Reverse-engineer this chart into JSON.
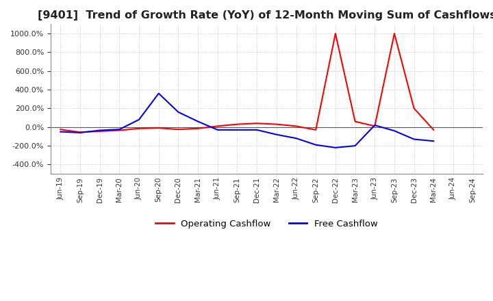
{
  "title": "[9401]  Trend of Growth Rate (YoY) of 12-Month Moving Sum of Cashflows",
  "title_fontsize": 11.5,
  "ylim": [
    -500,
    1100
  ],
  "yticks": [
    -400,
    -200,
    0,
    200,
    400,
    600,
    800,
    1000
  ],
  "background_color": "#ffffff",
  "operating_color": "#ff0000",
  "free_color": "#0000ff",
  "legend_labels": [
    "Operating Cashflow",
    "Free Cashflow"
  ],
  "x_labels": [
    "Jun-19",
    "Sep-19",
    "Dec-19",
    "Mar-20",
    "Jun-20",
    "Sep-20",
    "Dec-20",
    "Mar-21",
    "Jun-21",
    "Sep-21",
    "Dec-21",
    "Mar-22",
    "Jun-22",
    "Sep-22",
    "Dec-22",
    "Mar-23",
    "Jun-23",
    "Sep-23",
    "Dec-23",
    "Mar-24",
    "Jun-24",
    "Sep-24"
  ],
  "operating_cashflow": [
    -25,
    -55,
    -45,
    -35,
    -15,
    -10,
    -25,
    -15,
    10,
    30,
    40,
    30,
    10,
    -30,
    1000,
    60,
    10,
    1000,
    200,
    -30,
    null,
    null
  ],
  "free_cashflow": [
    -50,
    -60,
    -35,
    -25,
    80,
    360,
    160,
    60,
    -30,
    -30,
    -30,
    -80,
    -120,
    -190,
    -220,
    -200,
    20,
    -40,
    -130,
    -150,
    null,
    null
  ]
}
